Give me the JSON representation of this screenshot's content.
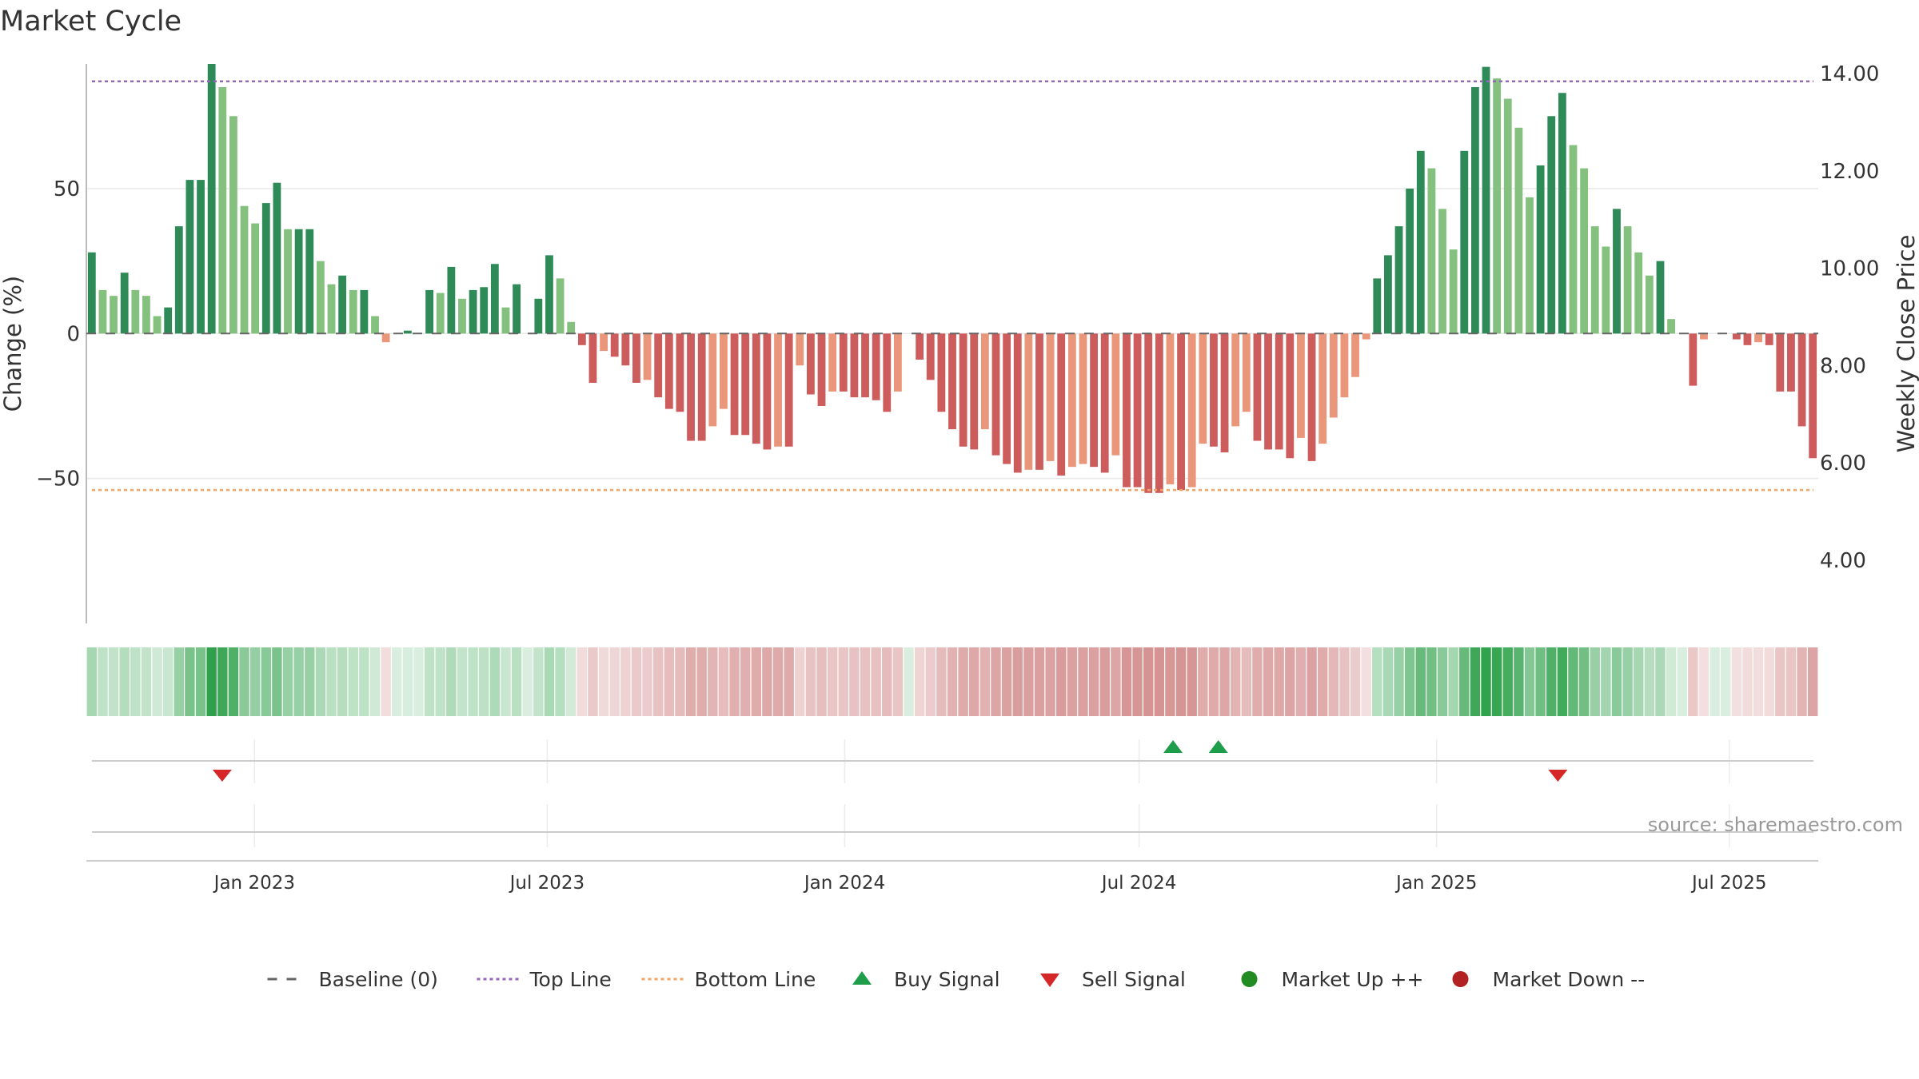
{
  "chart_data": {
    "type": "bar",
    "title": "Market Cycle",
    "ylabel_left": "Change (%)",
    "ylabel_right": "Weekly Close Price",
    "ylim_left": [
      -100,
      93
    ],
    "ylim_right": [
      2.7,
      14.2
    ],
    "yticks_left": [
      {
        "v": 50,
        "label": "50"
      },
      {
        "v": 0,
        "label": "0"
      },
      {
        "v": -50,
        "label": "−50"
      }
    ],
    "yticks_right": [
      {
        "v": 14,
        "label": "14.00"
      },
      {
        "v": 12,
        "label": "12.00"
      },
      {
        "v": 10,
        "label": "10.00"
      },
      {
        "v": 8,
        "label": "8.00"
      },
      {
        "v": 6,
        "label": "6.00"
      },
      {
        "v": 4,
        "label": "4.00"
      }
    ],
    "x_start": "2022-09-19",
    "x_end": "2025-08-25",
    "xticks": [
      {
        "date": "2023-01-01",
        "label": "Jan 2023"
      },
      {
        "date": "2023-07-01",
        "label": "Jul 2023"
      },
      {
        "date": "2024-01-01",
        "label": "Jan 2024"
      },
      {
        "date": "2024-07-01",
        "label": "Jul 2024"
      },
      {
        "date": "2025-01-01",
        "label": "Jan 2025"
      },
      {
        "date": "2025-07-01",
        "label": "Jul 2025"
      }
    ],
    "top_line": 87,
    "bottom_line": -54,
    "baseline": 0,
    "bar_values": [
      28,
      15,
      13,
      21,
      15,
      13,
      6,
      9,
      37,
      53,
      53,
      93,
      85,
      75,
      44,
      38,
      45,
      52,
      36,
      36,
      36,
      25,
      17,
      20,
      15,
      15,
      6,
      -3,
      0,
      1,
      0,
      15,
      14,
      23,
      12,
      15,
      16,
      24,
      9,
      17,
      0,
      12,
      27,
      19,
      4,
      -4,
      -17,
      -6,
      -8,
      -11,
      -17,
      -16,
      -22,
      -26,
      -27,
      -37,
      -37,
      -32,
      -26,
      -35,
      -35,
      -38,
      -40,
      -39,
      -39,
      -11,
      -21,
      -25,
      -20,
      -20,
      -22,
      -22,
      -23,
      -27,
      -20,
      0,
      -9,
      -16,
      -27,
      -33,
      -39,
      -40,
      -33,
      -42,
      -45,
      -48,
      -47,
      -47,
      -44,
      -49,
      -46,
      -45,
      -46,
      -48,
      -42,
      -53,
      -53,
      -55,
      -55,
      -52,
      -54,
      -53,
      -38,
      -39,
      -41,
      -32,
      -27,
      -37,
      -40,
      -40,
      -43,
      -36,
      -44,
      -38,
      -29,
      -22,
      -15,
      -2,
      19,
      27,
      37,
      50,
      63,
      57,
      43,
      29,
      63,
      85,
      92,
      88,
      81,
      71,
      47,
      58,
      75,
      83,
      65,
      57,
      37,
      30,
      43,
      37,
      28,
      20,
      25,
      5,
      0,
      -18,
      -2,
      0,
      0,
      -2,
      -4,
      -3,
      -4,
      -20,
      -20,
      -32,
      -43
    ],
    "bar_colors": {
      "strong_up": "#2e8b57",
      "weak_up": "#85c17e",
      "strong_down": "#cd5c5c",
      "weak_down": "#e9967a"
    },
    "heat_strip_colors": {
      "up": "#2ca048",
      "down": "#c05a5a"
    },
    "signals": [
      {
        "type": "sell",
        "date": "2022-12-12"
      },
      {
        "type": "buy",
        "date": "2024-07-22"
      },
      {
        "type": "buy",
        "date": "2024-08-19"
      },
      {
        "type": "sell",
        "date": "2025-03-17"
      }
    ],
    "signal_colors": {
      "buy": "#1e9e4a",
      "sell": "#d62728"
    },
    "source_text": "source: sharemaestro.com",
    "legend": [
      {
        "label": "Baseline (0)",
        "marker": "dash",
        "color": "#666666"
      },
      {
        "label": "Top Line",
        "marker": "dotted",
        "color": "#9467bd"
      },
      {
        "label": "Bottom Line",
        "marker": "dotted",
        "color": "#f4a460"
      },
      {
        "label": "Buy Signal",
        "marker": "triangle-up",
        "color": "#1e9e4a"
      },
      {
        "label": "Sell Signal",
        "marker": "triangle-down",
        "color": "#d62728"
      },
      {
        "label": "Market Up ++",
        "marker": "circle",
        "color": "#228b22"
      },
      {
        "label": "Market Down --",
        "marker": "circle",
        "color": "#b22222"
      }
    ],
    "legend_position": "bottom-center",
    "grid": true
  }
}
